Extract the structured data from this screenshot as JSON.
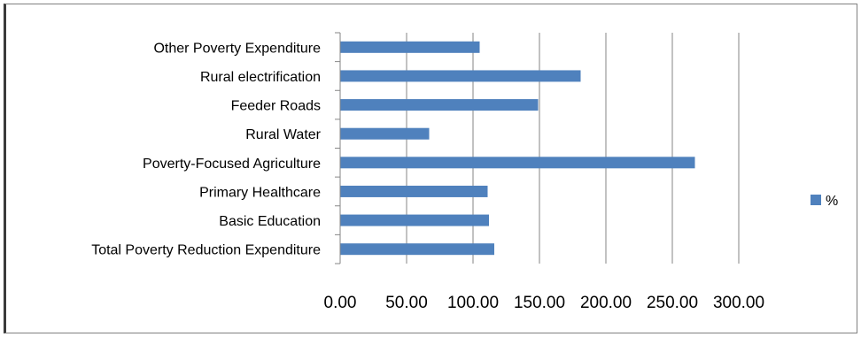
{
  "chart_data": {
    "type": "bar",
    "orientation": "horizontal",
    "categories": [
      "Other Poverty Expenditure",
      "Rural electrification",
      "Feeder Roads",
      "Rural Water",
      "Poverty-Focused Agriculture",
      "Primary Healthcare",
      "Basic Education",
      "Total Poverty Reduction Expenditure"
    ],
    "series": [
      {
        "name": "%",
        "color": "#4f81bd",
        "values": [
          105,
          181,
          149,
          67,
          267,
          111,
          112,
          116
        ]
      }
    ],
    "xlim": [
      0,
      300
    ],
    "xticks": [
      0,
      50,
      100,
      150,
      200,
      250,
      300
    ],
    "xtick_labels": [
      "0.00",
      "50.00",
      "100.00",
      "150.00",
      "200.00",
      "250.00",
      "300.00"
    ],
    "grid": "vertical",
    "legend": {
      "position": "right",
      "entries": [
        "%"
      ]
    }
  }
}
